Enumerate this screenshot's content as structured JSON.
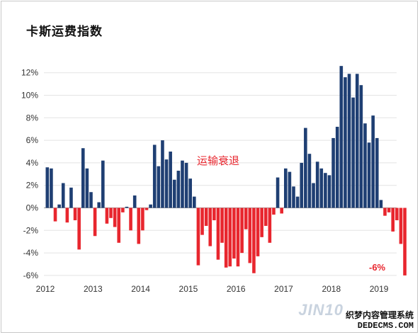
{
  "title": "卡斯运费指数",
  "annotation": "运输衰退",
  "end_label": "-6%",
  "watermark": {
    "brand": "JIN10",
    "line1": "织梦内容管理系统",
    "line2": "DEDECMS.COM"
  },
  "colors": {
    "positive": "#1f3f73",
    "negative": "#e8262e",
    "annotation": "#e8262e"
  },
  "chart_data": {
    "type": "bar",
    "title": "卡斯运费指数",
    "xlabel": "",
    "ylabel": "",
    "ylim": [
      -6,
      12.5
    ],
    "y_ticks": [
      "12%",
      "10%",
      "8%",
      "6%",
      "4%",
      "2%",
      "0%",
      "-2%",
      "-4%",
      "-6%"
    ],
    "y_tick_values": [
      12,
      10,
      8,
      6,
      4,
      2,
      0,
      -2,
      -4,
      -6
    ],
    "x_ticks": [
      "2012",
      "2013",
      "2014",
      "2015",
      "2016",
      "2017",
      "2018",
      "2019"
    ],
    "grid": true,
    "frequency": "monthly",
    "start": "2012-01",
    "end": "2019-05",
    "values": [
      3.6,
      3.5,
      -1.2,
      0.3,
      2.2,
      -1.3,
      1.8,
      -1.1,
      -3.7,
      5.3,
      3.5,
      1.4,
      -2.5,
      0.5,
      4.2,
      -1.4,
      -0.9,
      -1.7,
      -3.1,
      -0.4,
      0.1,
      -2.0,
      1.1,
      -3.2,
      -2.0,
      -0.2,
      0.3,
      5.6,
      3.7,
      6.0,
      4.3,
      5.0,
      2.5,
      3.3,
      4.2,
      4.0,
      2.6,
      1.0,
      -5.1,
      -2.4,
      -1.6,
      -3.4,
      -1.1,
      -4.6,
      -3.1,
      -5.3,
      -5.2,
      -4.5,
      -5.2,
      -4.0,
      -1.9,
      -4.9,
      -5.8,
      -4.3,
      -2.6,
      -1.6,
      -3.1,
      -0.6,
      2.7,
      -0.5,
      3.5,
      3.2,
      1.9,
      1.0,
      4.0,
      7.1,
      4.8,
      2.2,
      4.1,
      3.5,
      3.1,
      2.9,
      6.2,
      7.2,
      12.6,
      11.6,
      11.9,
      9.8,
      11.9,
      10.9,
      7.5,
      5.8,
      8.2,
      6.2,
      0.7,
      -0.7,
      -0.4,
      -2.1,
      -1.1,
      -3.2,
      -6.0
    ]
  }
}
